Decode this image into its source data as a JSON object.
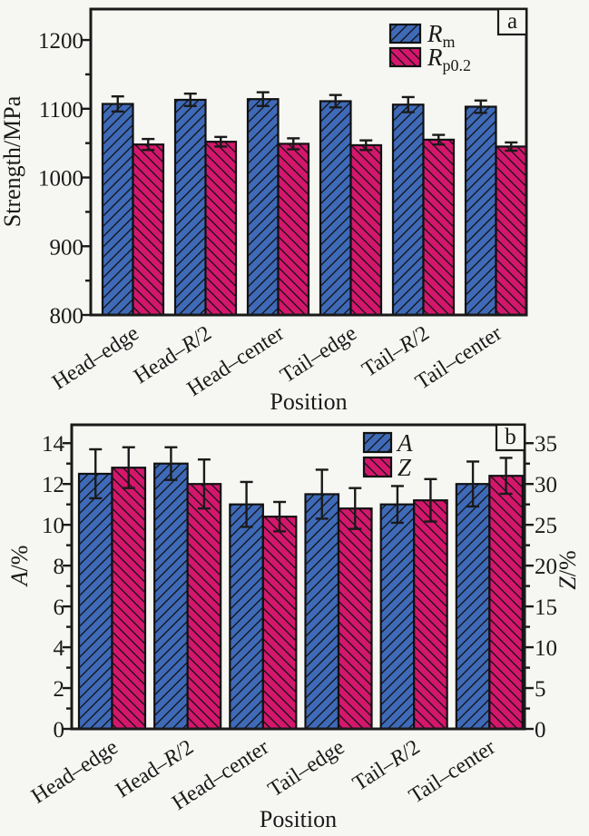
{
  "page": {
    "bg": "#f6f6f3",
    "text_color": "#1a1a1a",
    "axis_color": "#1a1a1a"
  },
  "chart_data": [
    {
      "type": "bar",
      "panel_label": "a",
      "xlabel": "Position",
      "ylabel": "Strength/MPa",
      "categories": [
        "Head–edge",
        "Head–R/2",
        "Head–center",
        "Tail–edge",
        "Tail–R/2",
        "Tail–center"
      ],
      "ylim": [
        800,
        1245
      ],
      "yticks": [
        800,
        900,
        1000,
        1100,
        1200
      ],
      "yminor_step": 50,
      "grid": false,
      "legend_position": "top-right-inside",
      "series": [
        {
          "name": "Rm",
          "legend_main": "R",
          "legend_sub": "m",
          "axis": "left",
          "color": "#3f6ab8",
          "hatch": "/",
          "values": [
            1107,
            1113,
            1114,
            1111,
            1106,
            1103
          ],
          "errors": [
            11,
            9,
            10,
            9,
            11,
            9
          ]
        },
        {
          "name": "Rp0.2",
          "legend_main": "R",
          "legend_sub": "p0.2",
          "axis": "left",
          "color": "#d4176d",
          "hatch": "\\",
          "values": [
            1048,
            1052,
            1049,
            1047,
            1055,
            1045
          ],
          "errors": [
            8,
            7,
            8,
            7,
            7,
            6
          ]
        }
      ]
    },
    {
      "type": "bar",
      "panel_label": "b",
      "xlabel": "Position",
      "ylabel_left_italic": "A",
      "ylabel_left_rest": "/%",
      "ylabel_right_italic": "Z",
      "ylabel_right_rest": "/%",
      "categories": [
        "Head–edge",
        "Head–R/2",
        "Head–center",
        "Tail–edge",
        "Tail–R/2",
        "Tail–center"
      ],
      "ylim_left": [
        0,
        14.9
      ],
      "yticks_left": [
        0,
        2,
        4,
        6,
        8,
        10,
        12,
        14
      ],
      "yminor_step_left": 1,
      "ylim_right": [
        0,
        37.25
      ],
      "yticks_right": [
        0,
        5,
        10,
        15,
        20,
        25,
        30,
        35
      ],
      "yminor_step_right": 2.5,
      "grid": false,
      "legend_position": "top-right-inside",
      "series": [
        {
          "name": "A",
          "legend_main": "A",
          "legend_sub": "",
          "axis": "left",
          "color": "#3f6ab8",
          "hatch": "/",
          "values": [
            12.5,
            13.0,
            11.0,
            11.5,
            11.0,
            12.0
          ],
          "errors": [
            1.2,
            0.8,
            1.1,
            1.2,
            0.9,
            1.1
          ]
        },
        {
          "name": "Z",
          "legend_main": "Z",
          "legend_sub": "",
          "axis": "right",
          "color": "#d4176d",
          "hatch": "\\",
          "values": [
            32,
            30,
            26,
            27,
            28,
            31
          ],
          "errors": [
            2.5,
            3.0,
            1.8,
            2.5,
            2.6,
            2.2
          ]
        }
      ]
    }
  ]
}
